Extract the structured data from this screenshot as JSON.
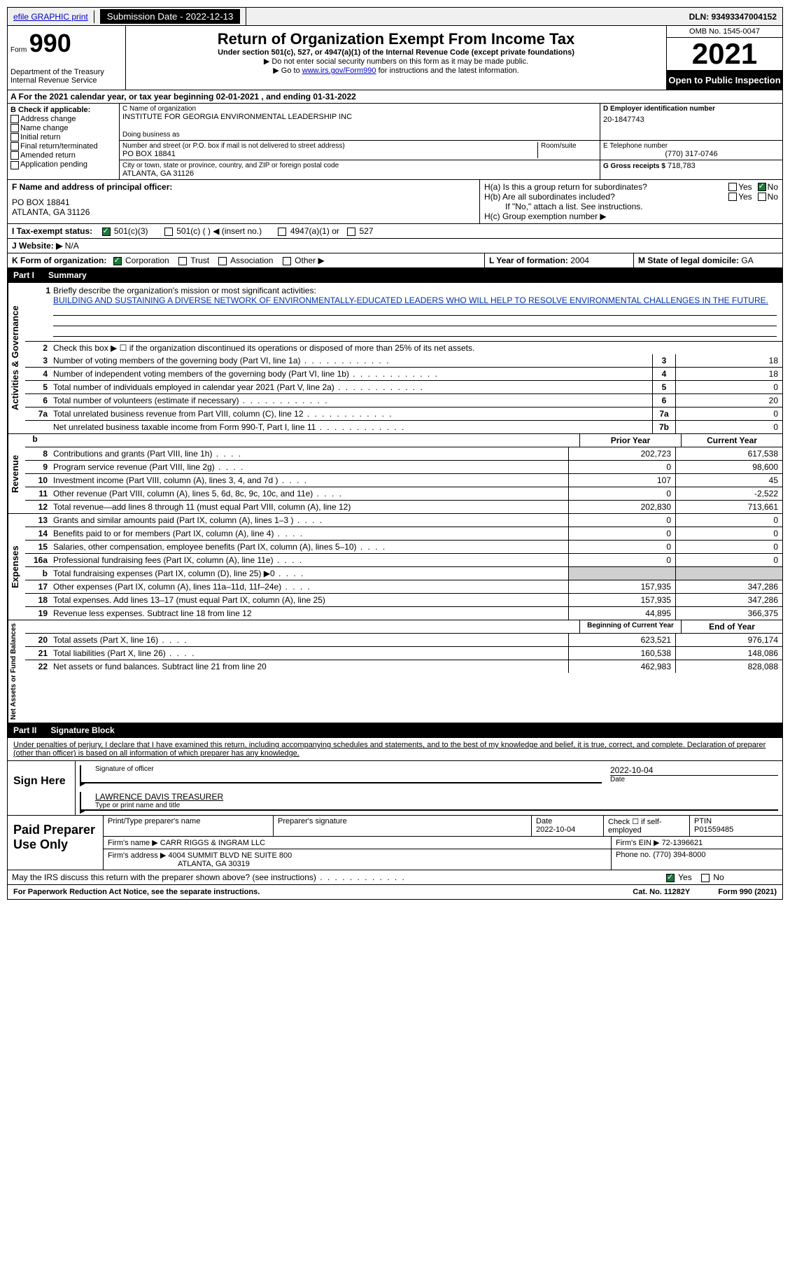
{
  "topbar": {
    "efile": "efile GRAPHIC print",
    "submission_label": "Submission Date - 2022-12-13",
    "dln": "DLN: 93493347004152"
  },
  "header": {
    "form_word": "Form",
    "form_num": "990",
    "dept": "Department of the Treasury Internal Revenue Service",
    "title": "Return of Organization Exempt From Income Tax",
    "subtitle": "Under section 501(c), 527, or 4947(a)(1) of the Internal Revenue Code (except private foundations)",
    "note1": "▶ Do not enter social security numbers on this form as it may be made public.",
    "note2_pre": "▶ Go to ",
    "note2_link": "www.irs.gov/Form990",
    "note2_post": " for instructions and the latest information.",
    "omb": "OMB No. 1545-0047",
    "year": "2021",
    "inspection": "Open to Public Inspection"
  },
  "cal_year": {
    "prefix": "A For the 2021 calendar year, or tax year beginning ",
    "begin": "02-01-2021",
    "mid": " , and ending ",
    "end": "01-31-2022"
  },
  "box_b": {
    "label": "B Check if applicable:",
    "items": [
      "Address change",
      "Name change",
      "Initial return",
      "Final return/terminated",
      "Amended return",
      "Application pending"
    ]
  },
  "box_c": {
    "name_label": "C Name of organization",
    "name": "INSTITUTE FOR GEORGIA ENVIRONMENTAL LEADERSHIP INC",
    "dba_label": "Doing business as",
    "addr_label": "Number and street (or P.O. box if mail is not delivered to street address)",
    "room_label": "Room/suite",
    "addr": "PO BOX 18841",
    "city_label": "City or town, state or province, country, and ZIP or foreign postal code",
    "city": "ATLANTA, GA  31126"
  },
  "box_d": {
    "label": "D Employer identification number",
    "value": "20-1847743",
    "phone_label": "E Telephone number",
    "phone": "(770) 317-0746",
    "gross_label": "G Gross receipts $",
    "gross": "718,783"
  },
  "box_f": {
    "label": "F  Name and address of principal officer:",
    "addr1": "PO BOX 18841",
    "addr2": "ATLANTA, GA  31126"
  },
  "box_h": {
    "a_label": "H(a)  Is this a group return for subordinates?",
    "b_label": "H(b)  Are all subordinates included?",
    "note": "If \"No,\" attach a list. See instructions.",
    "c_label": "H(c)  Group exemption number ▶",
    "yes": "Yes",
    "no": "No"
  },
  "box_i": {
    "label": "I  Tax-exempt status:",
    "o1": "501(c)(3)",
    "o2": "501(c) (  ) ◀ (insert no.)",
    "o3": "4947(a)(1) or",
    "o4": "527"
  },
  "box_j": {
    "label": "J  Website: ▶",
    "value": "N/A"
  },
  "box_k": {
    "label": "K Form of organization:",
    "o1": "Corporation",
    "o2": "Trust",
    "o3": "Association",
    "o4": "Other ▶"
  },
  "box_l": {
    "label": "L Year of formation:",
    "value": "2004"
  },
  "box_m": {
    "label": "M State of legal domicile:",
    "value": "GA"
  },
  "part1": {
    "num": "Part I",
    "title": "Summary"
  },
  "summary": {
    "q1_label": "Briefly describe the organization's mission or most significant activities:",
    "q1_text": "BUILDING AND SUSTAINING A DIVERSE NETWORK OF ENVIRONMENTALLY-EDUCATED LEADERS WHO WILL HELP TO RESOLVE ENVIRONMENTAL CHALLENGES IN THE FUTURE.",
    "q2": "Check this box ▶ ☐ if the organization discontinued its operations or disposed of more than 25% of its net assets.",
    "rows_gov": [
      {
        "n": "3",
        "d": "Number of voting members of the governing body (Part VI, line 1a)",
        "b": "3",
        "v": "18"
      },
      {
        "n": "4",
        "d": "Number of independent voting members of the governing body (Part VI, line 1b)",
        "b": "4",
        "v": "18"
      },
      {
        "n": "5",
        "d": "Total number of individuals employed in calendar year 2021 (Part V, line 2a)",
        "b": "5",
        "v": "0"
      },
      {
        "n": "6",
        "d": "Total number of volunteers (estimate if necessary)",
        "b": "6",
        "v": "20"
      },
      {
        "n": "7a",
        "d": "Total unrelated business revenue from Part VIII, column (C), line 12",
        "b": "7a",
        "v": "0"
      },
      {
        "n": "",
        "d": "Net unrelated business taxable income from Form 990-T, Part I, line 11",
        "b": "7b",
        "v": "0"
      }
    ],
    "col_prior": "Prior Year",
    "col_current": "Current Year",
    "rows_rev": [
      {
        "n": "8",
        "d": "Contributions and grants (Part VIII, line 1h)",
        "p": "202,723",
        "c": "617,538"
      },
      {
        "n": "9",
        "d": "Program service revenue (Part VIII, line 2g)",
        "p": "0",
        "c": "98,600"
      },
      {
        "n": "10",
        "d": "Investment income (Part VIII, column (A), lines 3, 4, and 7d )",
        "p": "107",
        "c": "45"
      },
      {
        "n": "11",
        "d": "Other revenue (Part VIII, column (A), lines 5, 6d, 8c, 9c, 10c, and 11e)",
        "p": "0",
        "c": "-2,522"
      },
      {
        "n": "12",
        "d": "Total revenue—add lines 8 through 11 (must equal Part VIII, column (A), line 12)",
        "p": "202,830",
        "c": "713,661"
      }
    ],
    "rows_exp": [
      {
        "n": "13",
        "d": "Grants and similar amounts paid (Part IX, column (A), lines 1–3 )",
        "p": "0",
        "c": "0"
      },
      {
        "n": "14",
        "d": "Benefits paid to or for members (Part IX, column (A), line 4)",
        "p": "0",
        "c": "0"
      },
      {
        "n": "15",
        "d": "Salaries, other compensation, employee benefits (Part IX, column (A), lines 5–10)",
        "p": "0",
        "c": "0"
      },
      {
        "n": "16a",
        "d": "Professional fundraising fees (Part IX, column (A), line 11e)",
        "p": "0",
        "c": "0"
      },
      {
        "n": "b",
        "d": "Total fundraising expenses (Part IX, column (D), line 25) ▶0",
        "p": "",
        "c": "",
        "grey": true
      },
      {
        "n": "17",
        "d": "Other expenses (Part IX, column (A), lines 11a–11d, 11f–24e)",
        "p": "157,935",
        "c": "347,286"
      },
      {
        "n": "18",
        "d": "Total expenses. Add lines 13–17 (must equal Part IX, column (A), line 25)",
        "p": "157,935",
        "c": "347,286"
      },
      {
        "n": "19",
        "d": "Revenue less expenses. Subtract line 18 from line 12",
        "p": "44,895",
        "c": "366,375"
      }
    ],
    "col_begin": "Beginning of Current Year",
    "col_end": "End of Year",
    "rows_net": [
      {
        "n": "20",
        "d": "Total assets (Part X, line 16)",
        "p": "623,521",
        "c": "976,174"
      },
      {
        "n": "21",
        "d": "Total liabilities (Part X, line 26)",
        "p": "160,538",
        "c": "148,086"
      },
      {
        "n": "22",
        "d": "Net assets or fund balances. Subtract line 21 from line 20",
        "p": "462,983",
        "c": "828,088"
      }
    ]
  },
  "sections": {
    "gov": "Activities & Governance",
    "rev": "Revenue",
    "exp": "Expenses",
    "net": "Net Assets or Fund Balances"
  },
  "part2": {
    "num": "Part II",
    "title": "Signature Block"
  },
  "sig": {
    "penalty": "Under penalties of perjury, I declare that I have examined this return, including accompanying schedules and statements, and to the best of my knowledge and belief, it is true, correct, and complete. Declaration of preparer (other than officer) is based on all information of which preparer has any knowledge.",
    "sign_here": "Sign Here",
    "sig_officer": "Signature of officer",
    "date_label": "Date",
    "date": "2022-10-04",
    "name": "LAWRENCE DAVIS TREASURER",
    "name_label": "Type or print name and title"
  },
  "preparer": {
    "label": "Paid Preparer Use Only",
    "h1": "Print/Type preparer's name",
    "h2": "Preparer's signature",
    "h3_label": "Date",
    "h3": "2022-10-04",
    "h4_label": "Check ☐ if self-employed",
    "h5_label": "PTIN",
    "h5": "P01559485",
    "firm_label": "Firm's name    ▶",
    "firm": "CARR RIGGS & INGRAM LLC",
    "ein_label": "Firm's EIN ▶",
    "ein": "72-1396621",
    "addr_label": "Firm's address ▶",
    "addr1": "4004 SUMMIT BLVD NE SUITE 800",
    "addr2": "ATLANTA, GA  30319",
    "phone_label": "Phone no.",
    "phone": "(770) 394-8000"
  },
  "footer": {
    "discuss": "May the IRS discuss this return with the preparer shown above? (see instructions)",
    "yes": "Yes",
    "no": "No",
    "paperwork": "For Paperwork Reduction Act Notice, see the separate instructions.",
    "cat": "Cat. No. 11282Y",
    "form": "Form 990 (2021)"
  }
}
